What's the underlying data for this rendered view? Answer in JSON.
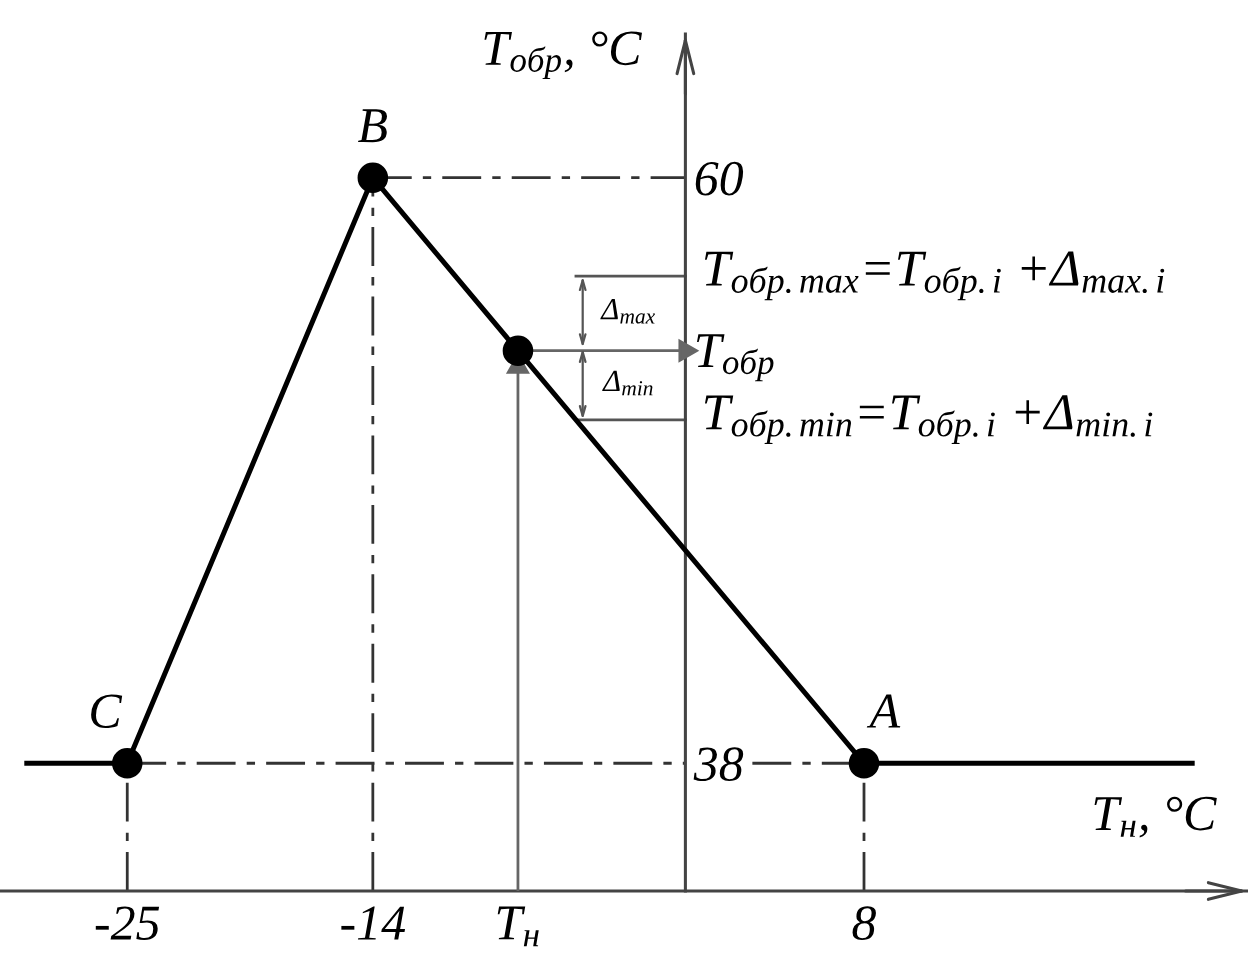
{
  "chart_data": {
    "type": "line",
    "xlabel": "T$_{н}$, °C",
    "ylabel": "T$_{обр}$, °C",
    "xlim": [
      -30.7,
      25.2
    ],
    "ylim": [
      33.2,
      65.4
    ],
    "xticks": [
      -25,
      -14,
      {
        "value": -7.5,
        "label": "T$_{н}$"
      },
      8
    ],
    "yticks": [
      38,
      {
        "value": 53.5,
        "label": "T$_{обр}$"
      },
      60
    ],
    "grid": false,
    "series": [
      {
        "color": "#333333",
        "x": [
          -25,
          0
        ],
        "values": [
          38,
          38
        ],
        "line_style": "dashed"
      },
      {
        "color": "#333333",
        "x": [
          3,
          8
        ],
        "values": [
          38,
          38
        ],
        "line_style": "dashed"
      },
      {
        "color": "#333333",
        "x": [
          -14,
          0
        ],
        "values": [
          60,
          60
        ],
        "line_style": "dashed"
      },
      {
        "color": "#333333",
        "x": [
          -25,
          -25
        ],
        "values": [
          33.2,
          38
        ],
        "line_style": "dashed"
      },
      {
        "color": "#333333",
        "x": [
          -14,
          -14
        ],
        "values": [
          33.2,
          60
        ],
        "line_style": "dashed"
      },
      {
        "color": "#333333",
        "x": [
          8,
          8
        ],
        "values": [
          33.2,
          38
        ],
        "line_style": "dashed"
      },
      {
        "color": "#000000",
        "x": [
          -29.5,
          -25,
          -14,
          8,
          22.7
        ],
        "values": [
          38,
          38,
          60,
          38,
          38
        ],
        "line_style": "solid"
      },
      {
        "color": "#666666",
        "x": [
          -7.5,
          -7.5
        ],
        "values": [
          33.2,
          52.9
        ],
        "line_style": "solid",
        "marker": "triangle"
      },
      {
        "color": "#666666",
        "x": [
          -7.5,
          0
        ],
        "values": [
          53.5,
          53.5
        ],
        "line_style": "solid",
        "marker": "triangle"
      },
      {
        "type": "scatter",
        "color": "#000000",
        "x": [
          -25,
          -14,
          8,
          -7.5
        ],
        "values": [
          38,
          60,
          38,
          53.5
        ],
        "marker": "circle",
        "value_labels": [
          "C",
          "B",
          "A",
          null
        ]
      }
    ],
    "ref_lines": [
      {
        "axis": "y",
        "value": 56.3,
        "label": "T$_{обр.max}$=T$_{обр.i}$ +Δ$_{max.i}$",
        "color": "#555555"
      },
      {
        "axis": "y",
        "value": 50.9,
        "label": "T$_{обр.min}$=T$_{обр.i}$ +Δ$_{min.i}$",
        "color": "#555555"
      }
    ],
    "annotations": [
      {
        "text": "Δ$_{max}$",
        "x": -4.6,
        "y": 56.3
      },
      {
        "text": "Δ$_{min}$",
        "x": -4.6,
        "y": 50.9
      }
    ]
  }
}
